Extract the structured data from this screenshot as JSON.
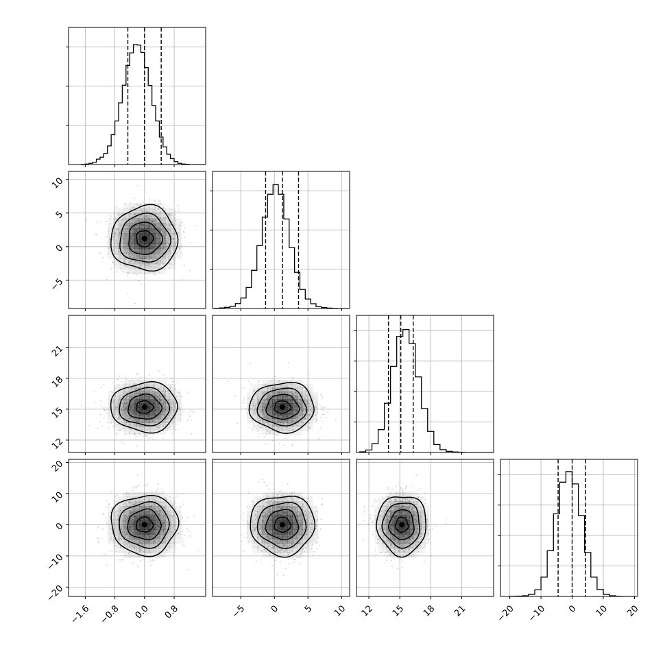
{
  "chart_data": {
    "type": "corner",
    "grid": true,
    "title": "",
    "parameters": [
      {
        "index": 0,
        "label": "",
        "range": [
          -2.05,
          1.65
        ],
        "ticks": [
          -1.6,
          -0.8,
          0.0,
          0.8
        ],
        "tick_labels": [
          "−1.6",
          "−0.8",
          "0.0",
          "0.8"
        ],
        "mean": 0.0,
        "sigma": 0.45,
        "quantiles": [
          -0.45,
          0.0,
          0.45
        ],
        "histogram": {
          "edges_start": -1.7,
          "bin_width": 0.1,
          "counts": [
            1,
            2,
            5,
            9,
            22,
            30,
            45,
            76,
            122,
            178,
            252,
            324,
            405,
            456,
            490,
            488,
            458,
            396,
            323,
            241,
            178,
            112,
            72,
            42,
            24,
            12,
            5,
            2,
            1,
            0,
            0,
            0,
            0,
            0
          ]
        }
      },
      {
        "index": 1,
        "label": "",
        "range": [
          -9.2,
          11.2
        ],
        "ticks": [
          -5,
          0,
          5,
          10
        ],
        "tick_labels": [
          "−5",
          "0",
          "5",
          "10"
        ],
        "mean": 1.2,
        "sigma": 2.4,
        "quantiles": [
          -1.3,
          1.2,
          3.6
        ],
        "histogram": {
          "edges_start": -9.0,
          "bin_width": 0.8,
          "counts": [
            1,
            3,
            6,
            12,
            26,
            55,
            110,
            200,
            330,
            480,
            600,
            650,
            600,
            470,
            320,
            190,
            100,
            50,
            25,
            10,
            5,
            2,
            1,
            0,
            0
          ]
        }
      },
      {
        "index": 2,
        "label": "",
        "range": [
          10.8,
          24.1
        ],
        "ticks": [
          12,
          15,
          18,
          21
        ],
        "tick_labels": [
          "12",
          "15",
          "18",
          "21"
        ],
        "mean": 15.2,
        "sigma": 1.2,
        "quantiles": [
          13.9,
          15.1,
          16.3
        ],
        "histogram": {
          "edges_start": 11.1,
          "bin_width": 0.6,
          "counts": [
            4,
            14,
            50,
            130,
            280,
            490,
            660,
            700,
            620,
            430,
            250,
            120,
            45,
            16,
            6,
            3,
            1,
            0,
            0,
            0,
            0,
            0
          ]
        }
      },
      {
        "index": 3,
        "label": "",
        "range": [
          -23,
          21
        ],
        "ticks": [
          -20,
          -10,
          0,
          10,
          20
        ],
        "tick_labels": [
          "−20",
          "−10",
          "0",
          "10",
          "20"
        ],
        "mean": 0.0,
        "sigma": 4.8,
        "quantiles": [
          -4.5,
          0.0,
          4.3
        ],
        "histogram": {
          "edges_start": -20.0,
          "bin_width": 2.0,
          "counts": [
            1,
            2,
            4,
            12,
            38,
            110,
            260,
            470,
            650,
            710,
            640,
            460,
            250,
            110,
            40,
            12,
            4,
            1,
            0,
            0
          ]
        }
      }
    ],
    "y_tick_labels": {
      "1": [
        "10",
        "5",
        "0",
        "−5"
      ],
      "2": [
        "21",
        "18",
        "15",
        "12"
      ],
      "3": [
        "20",
        "10",
        "0",
        "−10",
        "−20"
      ]
    },
    "y_ticks": {
      "1": [
        10,
        5,
        0,
        -5
      ],
      "2": [
        21,
        18,
        15,
        12
      ],
      "3": [
        20,
        10,
        0,
        -10,
        -20
      ]
    },
    "hist_ymax": [
      560,
      720,
      780,
      780
    ],
    "hist_y_gridlines": [
      3,
      3,
      4,
      4
    ],
    "contour_levels_sigma": [
      0.5,
      1.0,
      1.5,
      2.0
    ],
    "scatter_points_per_panel": 900,
    "colors": {
      "line": "#000000",
      "grid": "#b0b0b0",
      "scatter": "#9a9a9a",
      "density": "#000000",
      "background": "#ffffff"
    }
  }
}
